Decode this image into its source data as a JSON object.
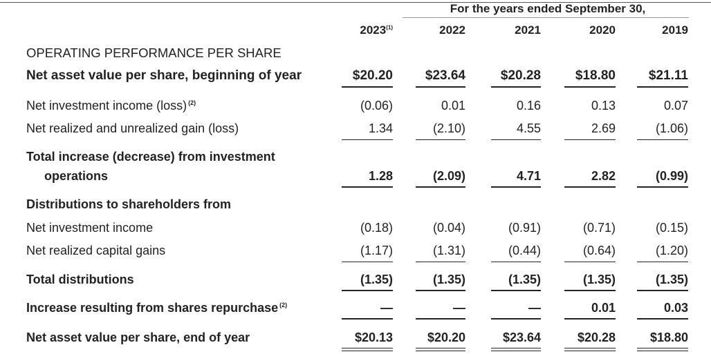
{
  "header": {
    "period_label": "For the years ended September 30,",
    "years": [
      "2023",
      "2022",
      "2021",
      "2020",
      "2019"
    ],
    "first_year_note": "(1)"
  },
  "section_title": "OPERATING PERFORMANCE PER SHARE",
  "rows": {
    "nav_begin": {
      "label": "Net asset value per share, beginning of year",
      "values": [
        "$20.20",
        "$23.64",
        "$20.28",
        "$18.80",
        "$21.11"
      ]
    },
    "nii": {
      "label": "Net investment income (loss)",
      "note": "(2)",
      "values": [
        "(0.06)",
        "0.01",
        "0.16",
        "0.13",
        "0.07"
      ]
    },
    "gain": {
      "label": "Net realized and unrealized gain (loss)",
      "values": [
        "1.34",
        "(2.10)",
        "4.55",
        "2.69",
        "(1.06)"
      ]
    },
    "total_inc": {
      "label_line1": "Total increase (decrease) from investment",
      "label_line2": "operations",
      "values": [
        "1.28",
        "(2.09)",
        "4.71",
        "2.82",
        "(0.99)"
      ]
    },
    "dist_header": {
      "label": "Distributions to shareholders from"
    },
    "dist_nii": {
      "label": "Net investment income",
      "values": [
        "(0.18)",
        "(0.04)",
        "(0.91)",
        "(0.71)",
        "(0.15)"
      ]
    },
    "dist_gains": {
      "label": "Net realized capital gains",
      "values": [
        "(1.17)",
        "(1.31)",
        "(0.44)",
        "(0.64)",
        "(1.20)"
      ]
    },
    "total_dist": {
      "label": "Total distributions",
      "values": [
        "(1.35)",
        "(1.35)",
        "(1.35)",
        "(1.35)",
        "(1.35)"
      ]
    },
    "repurchase": {
      "label": "Increase resulting from shares repurchase",
      "note": "(2)",
      "values": [
        "—",
        "—",
        "—",
        "0.01",
        "0.03"
      ]
    },
    "nav_end": {
      "label": "Net asset value per share, end of year",
      "values": [
        "$20.13",
        "$20.20",
        "$23.64",
        "$20.28",
        "$18.80"
      ]
    }
  }
}
